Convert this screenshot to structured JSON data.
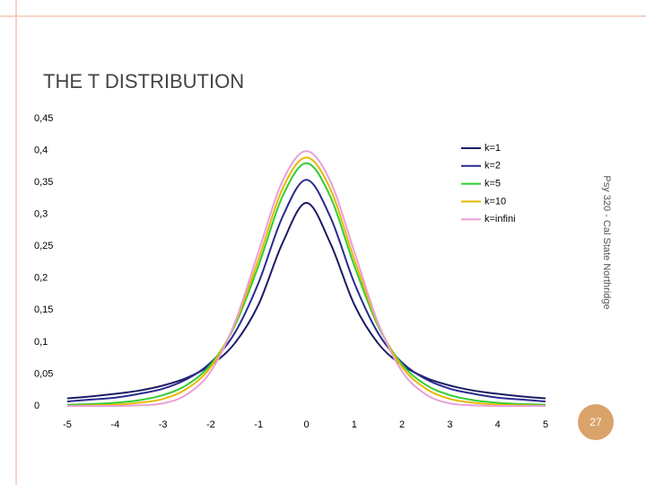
{
  "title": "THE T DISTRIBUTION",
  "footer": "Psy 320 - Cal State Northridge",
  "slide_number": 27,
  "chart_data": {
    "type": "line",
    "x": [
      -5,
      -4.5,
      -4,
      -3.5,
      -3,
      -2.5,
      -2,
      -1.5,
      -1,
      -0.5,
      0,
      0.5,
      1,
      1.5,
      2,
      2.5,
      3,
      3.5,
      4,
      4.5,
      5
    ],
    "series": [
      {
        "name": "k=1",
        "color": "#1c1c66",
        "values": [
          0.012,
          0.015,
          0.019,
          0.024,
          0.032,
          0.044,
          0.064,
          0.098,
          0.159,
          0.255,
          0.318,
          0.255,
          0.159,
          0.098,
          0.064,
          0.044,
          0.032,
          0.024,
          0.019,
          0.015,
          0.012
        ]
      },
      {
        "name": "k=2",
        "color": "#2b2b8f",
        "values": [
          0.007,
          0.01,
          0.013,
          0.019,
          0.027,
          0.042,
          0.068,
          0.114,
          0.193,
          0.296,
          0.354,
          0.296,
          0.193,
          0.114,
          0.068,
          0.042,
          0.027,
          0.019,
          0.013,
          0.01,
          0.007
        ]
      },
      {
        "name": "k=5",
        "color": "#33cc33",
        "values": [
          0.002,
          0.003,
          0.005,
          0.009,
          0.017,
          0.033,
          0.065,
          0.125,
          0.22,
          0.328,
          0.38,
          0.328,
          0.22,
          0.125,
          0.065,
          0.033,
          0.017,
          0.009,
          0.005,
          0.003,
          0.002
        ]
      },
      {
        "name": "k=10",
        "color": "#e6b800",
        "values": [
          0.0,
          0.001,
          0.002,
          0.005,
          0.011,
          0.027,
          0.061,
          0.128,
          0.23,
          0.34,
          0.389,
          0.34,
          0.23,
          0.128,
          0.061,
          0.027,
          0.011,
          0.005,
          0.002,
          0.001,
          0.0
        ]
      },
      {
        "name": "k=infini",
        "color": "#e8a0d8",
        "values": [
          0.0,
          0.0,
          0.0,
          0.001,
          0.004,
          0.018,
          0.054,
          0.13,
          0.242,
          0.352,
          0.399,
          0.352,
          0.242,
          0.13,
          0.054,
          0.018,
          0.004,
          0.001,
          0.0,
          0.0,
          0.0
        ]
      }
    ],
    "xlim": [
      -5,
      5
    ],
    "xticks": [
      -5,
      -4,
      -3,
      -2,
      -1,
      0,
      1,
      2,
      3,
      4,
      5
    ],
    "ylim": [
      0,
      0.45
    ],
    "yticks": [
      0,
      {
        "value": 0.05,
        "label": "0,05"
      },
      {
        "value": 0.1,
        "label": "0,1"
      },
      {
        "value": 0.15,
        "label": "0,15"
      },
      {
        "value": 0.2,
        "label": "0,2"
      },
      {
        "value": 0.25,
        "label": "0,25"
      },
      {
        "value": 0.3,
        "label": "0,3"
      },
      {
        "value": 0.35,
        "label": "0,35"
      },
      {
        "value": 0.4,
        "label": "0,4"
      },
      {
        "value": 0.45,
        "label": "0,45"
      }
    ],
    "legend": "top-right"
  }
}
